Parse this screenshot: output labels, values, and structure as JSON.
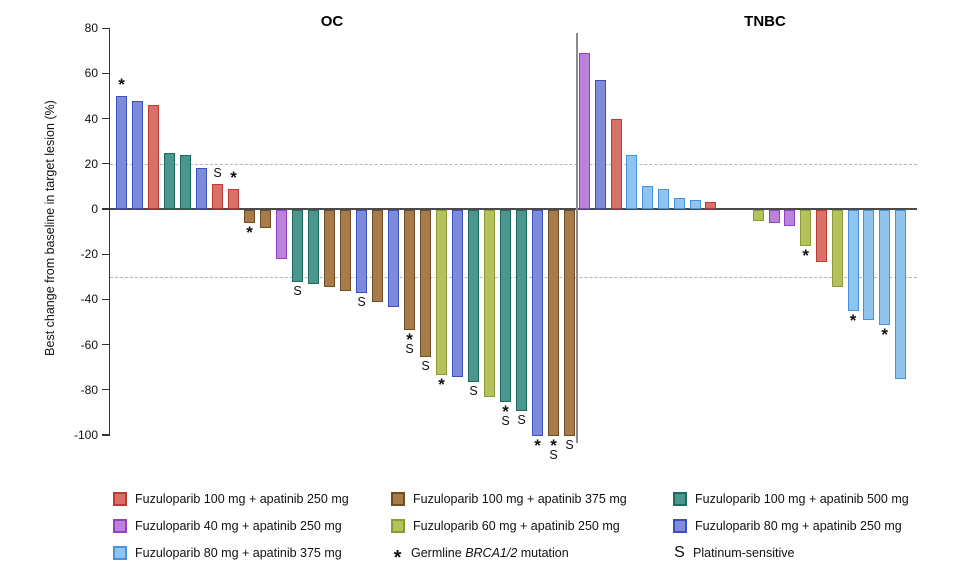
{
  "chart_data": {
    "type": "bar",
    "subtype": "waterfall",
    "ylabel": "Best change from baseline in target lesion (%)",
    "ylim": [
      -100,
      80
    ],
    "yticks": [
      80,
      60,
      40,
      20,
      0,
      -20,
      -40,
      -60,
      -80,
      -100
    ],
    "reference_lines_y": [
      20,
      -30
    ],
    "grid": false,
    "legend_position": "bottom",
    "marker_meaning": {
      "*": "Germline BRCA1/2 mutation",
      "S": "Platinum-sensitive"
    },
    "colors": {
      "red": {
        "fill": "#D8716A",
        "border": "#C03A34"
      },
      "orchid": {
        "fill": "#BA82D8",
        "border": "#9243C4"
      },
      "sky": {
        "fill": "#8FC4EF",
        "border": "#4693DB"
      },
      "brown": {
        "fill": "#A67C4B",
        "border": "#6F4E24"
      },
      "yellow": {
        "fill": "#B5C25B",
        "border": "#8C9B33"
      },
      "teal": {
        "fill": "#4A978D",
        "border": "#20695F"
      },
      "slate": {
        "fill": "#7E8CD8",
        "border": "#3D4EC2"
      }
    },
    "group_labels": {
      "red": "Fuzuloparib 100 mg + apatinib 250 mg",
      "orchid": "Fuzuloparib 40 mg + apatinib 250 mg",
      "sky": "Fuzuloparib 80 mg + apatinib 375 mg",
      "brown": "Fuzuloparib 100 mg + apatinib 375 mg",
      "yellow": "Fuzuloparib 60 mg + apatinib 250 mg",
      "teal": "Fuzuloparib 100 mg + apatinib 500 mg",
      "slate": "Fuzuloparib 80 mg + apatinib 250 mg"
    },
    "panels": [
      {
        "title": "OC",
        "bars": [
          {
            "value": 50,
            "group": "slate",
            "markers": [
              "*"
            ]
          },
          {
            "value": 48,
            "group": "slate",
            "markers": []
          },
          {
            "value": 46,
            "group": "red",
            "markers": []
          },
          {
            "value": 25,
            "group": "teal",
            "markers": []
          },
          {
            "value": 24,
            "group": "teal",
            "markers": []
          },
          {
            "value": 18,
            "group": "slate",
            "markers": []
          },
          {
            "value": 11,
            "group": "red",
            "markers": [
              "S"
            ]
          },
          {
            "value": 9,
            "group": "red",
            "markers": [
              "*"
            ]
          },
          {
            "value": -6,
            "group": "brown",
            "markers": [
              "*"
            ]
          },
          {
            "value": -8,
            "group": "brown",
            "markers": []
          },
          {
            "value": -22,
            "group": "orchid",
            "markers": []
          },
          {
            "value": -32,
            "group": "teal",
            "markers": [
              "S"
            ]
          },
          {
            "value": -33,
            "group": "teal",
            "markers": []
          },
          {
            "value": -34,
            "group": "brown",
            "markers": []
          },
          {
            "value": -36,
            "group": "brown",
            "markers": []
          },
          {
            "value": -37,
            "group": "slate",
            "markers": [
              "S"
            ]
          },
          {
            "value": -41,
            "group": "brown",
            "markers": []
          },
          {
            "value": -43,
            "group": "slate",
            "markers": []
          },
          {
            "value": -53,
            "group": "brown",
            "markers": [
              "*",
              "S"
            ]
          },
          {
            "value": -65,
            "group": "brown",
            "markers": [
              "S"
            ]
          },
          {
            "value": -73,
            "group": "yellow",
            "markers": [
              "*"
            ]
          },
          {
            "value": -74,
            "group": "slate",
            "markers": []
          },
          {
            "value": -76,
            "group": "teal",
            "markers": [
              "S"
            ]
          },
          {
            "value": -83,
            "group": "yellow",
            "markers": []
          },
          {
            "value": -85,
            "group": "teal",
            "markers": [
              "*",
              "S"
            ]
          },
          {
            "value": -89,
            "group": "teal",
            "markers": [
              "S"
            ]
          },
          {
            "value": -100,
            "group": "slate",
            "markers": [
              "*"
            ]
          },
          {
            "value": -100,
            "group": "brown",
            "markers": [
              "*",
              "S"
            ]
          },
          {
            "value": -100,
            "group": "brown",
            "markers": [
              "S"
            ]
          }
        ]
      },
      {
        "title": "TNBC",
        "bars": [
          {
            "value": 69,
            "group": "orchid",
            "markers": []
          },
          {
            "value": 57,
            "group": "slate",
            "markers": []
          },
          {
            "value": 40,
            "group": "red",
            "markers": []
          },
          {
            "value": 24,
            "group": "sky",
            "markers": []
          },
          {
            "value": 10,
            "group": "sky",
            "markers": []
          },
          {
            "value": 9,
            "group": "sky",
            "markers": []
          },
          {
            "value": 5,
            "group": "sky",
            "markers": []
          },
          {
            "value": 4,
            "group": "sky",
            "markers": []
          },
          {
            "value": 3,
            "group": "red",
            "markers": []
          },
          {
            "value": 0,
            "group": "none",
            "markers": []
          },
          {
            "value": 0,
            "group": "none",
            "markers": []
          },
          {
            "value": -5,
            "group": "yellow",
            "markers": []
          },
          {
            "value": -6,
            "group": "orchid",
            "markers": []
          },
          {
            "value": -7,
            "group": "orchid",
            "markers": []
          },
          {
            "value": -16,
            "group": "yellow",
            "markers": [
              "*"
            ]
          },
          {
            "value": -23,
            "group": "red",
            "markers": []
          },
          {
            "value": -34,
            "group": "yellow",
            "markers": []
          },
          {
            "value": -45,
            "group": "sky",
            "markers": [
              "*"
            ]
          },
          {
            "value": -49,
            "group": "sky",
            "markers": []
          },
          {
            "value": -51,
            "group": "sky",
            "markers": [
              "*"
            ]
          },
          {
            "value": -75,
            "group": "sky",
            "markers": []
          }
        ]
      }
    ]
  },
  "legend": {
    "items": [
      {
        "swatch": "red",
        "label": "Fuzuloparib 100 mg + apatinib 250 mg"
      },
      {
        "swatch": "orchid",
        "label": "Fuzuloparib 40 mg + apatinib 250 mg"
      },
      {
        "swatch": "sky",
        "label": "Fuzuloparib 80 mg + apatinib 375 mg"
      },
      {
        "swatch": "brown",
        "label": "Fuzuloparib 100 mg + apatinib 375 mg"
      },
      {
        "swatch": "yellow",
        "label": "Fuzuloparib 60 mg + apatinib 250 mg"
      },
      {
        "symbol": "*",
        "label_pre": "Germline ",
        "label_italic": "BRCA1/2",
        "label_post": " mutation"
      },
      {
        "swatch": "teal",
        "label": "Fuzuloparib 100 mg + apatinib 500 mg"
      },
      {
        "swatch": "slate",
        "label": "Fuzuloparib 80 mg + apatinib 250 mg"
      },
      {
        "symbol": "S",
        "label": "Platinum-sensitive"
      }
    ]
  }
}
